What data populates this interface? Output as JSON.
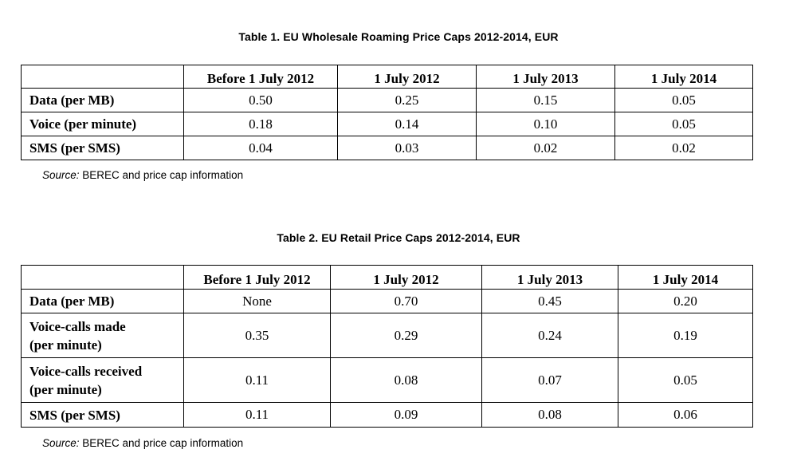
{
  "table1": {
    "caption": "Table 1. EU Wholesale Roaming Price Caps 2012-2014, EUR",
    "columns": [
      "",
      "Before 1 July 2012",
      "1 July 2012",
      "1 July 2013",
      "1 July 2014"
    ],
    "rows": [
      {
        "label": "Data (per MB)",
        "values": [
          "0.50",
          "0.25",
          "0.15",
          "0.05"
        ]
      },
      {
        "label": "Voice (per minute)",
        "values": [
          "0.18",
          "0.14",
          "0.10",
          "0.05"
        ]
      },
      {
        "label": "SMS (per SMS)",
        "values": [
          "0.04",
          "0.03",
          "0.02",
          "0.02"
        ]
      }
    ],
    "source_label": "Source:",
    "source_text": " BEREC and price cap information"
  },
  "table2": {
    "caption": "Table 2. EU Retail Price Caps 2012-2014, EUR",
    "columns": [
      "",
      "Before 1 July 2012",
      "1 July 2012",
      "1 July 2013",
      "1 July 2014"
    ],
    "rows": [
      {
        "label_lines": [
          "Data (per MB)"
        ],
        "values": [
          "None",
          "0.70",
          "0.45",
          "0.20"
        ]
      },
      {
        "label_lines": [
          "Voice-calls made",
          "(per minute)"
        ],
        "values": [
          "0.35",
          "0.29",
          "0.24",
          "0.19"
        ]
      },
      {
        "label_lines": [
          "Voice-calls received",
          "(per minute)"
        ],
        "values": [
          "0.11",
          "0.08",
          "0.07",
          "0.05"
        ]
      },
      {
        "label_lines": [
          "SMS (per SMS)"
        ],
        "values": [
          "0.11",
          "0.09",
          "0.08",
          "0.06"
        ]
      }
    ],
    "source_label": "Source:",
    "source_text": " BEREC and price cap information"
  }
}
